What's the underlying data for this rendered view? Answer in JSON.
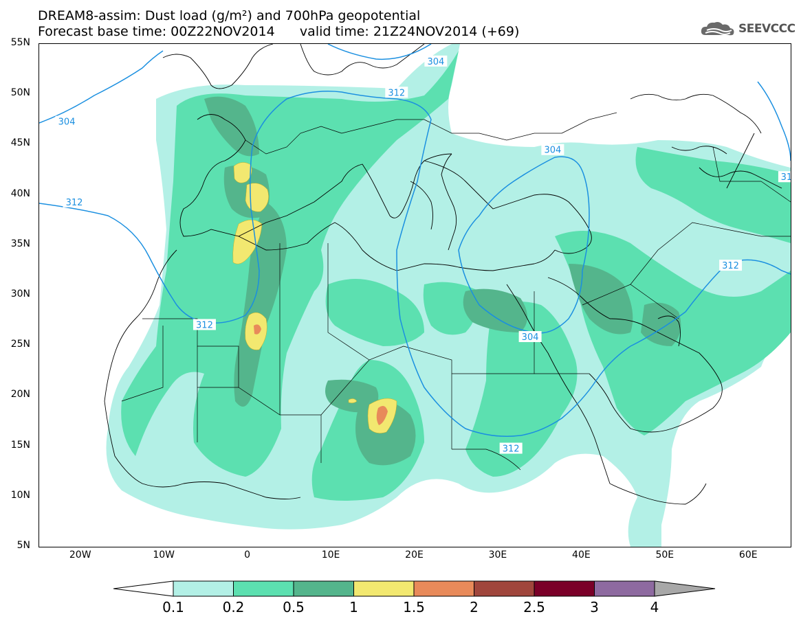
{
  "header": {
    "title_line1": "DREAM8-assim: Dust load (g/m²) and 700hPa geopotential",
    "title_line2": "Forecast base time: 00Z22NOV2014      valid time: 21Z24NOV2014 (+69)"
  },
  "logo": {
    "text": "SEEVCCC",
    "icon": "cloud-icon"
  },
  "map": {
    "lon_range": [
      -25,
      65
    ],
    "lat_range": [
      5,
      55
    ],
    "lat_ticks": [
      {
        "value": 55,
        "label": "55N"
      },
      {
        "value": 50,
        "label": "50N"
      },
      {
        "value": 45,
        "label": "45N"
      },
      {
        "value": 40,
        "label": "40N"
      },
      {
        "value": 35,
        "label": "35N"
      },
      {
        "value": 30,
        "label": "30N"
      },
      {
        "value": 25,
        "label": "25N"
      },
      {
        "value": 20,
        "label": "20N"
      },
      {
        "value": 15,
        "label": "15N"
      },
      {
        "value": 10,
        "label": "10N"
      },
      {
        "value": 5,
        "label": "5N"
      }
    ],
    "lon_ticks": [
      {
        "value": -20,
        "label": "20W"
      },
      {
        "value": -10,
        "label": "10W"
      },
      {
        "value": 0,
        "label": "0"
      },
      {
        "value": 10,
        "label": "10E"
      },
      {
        "value": 20,
        "label": "20E"
      },
      {
        "value": 30,
        "label": "30E"
      },
      {
        "value": 40,
        "label": "40E"
      },
      {
        "value": 50,
        "label": "50E"
      },
      {
        "value": 60,
        "label": "60E"
      }
    ],
    "contour_labels": [
      {
        "text": "304",
        "lon": -21.7,
        "lat": 47.3
      },
      {
        "text": "304",
        "lon": 22.5,
        "lat": 53.3
      },
      {
        "text": "312",
        "lon": -20.8,
        "lat": 39.3
      },
      {
        "text": "312",
        "lon": 17.8,
        "lat": 50.2
      },
      {
        "text": "312",
        "lon": -5.2,
        "lat": 27.1
      },
      {
        "text": "304",
        "lon": 36.5,
        "lat": 44.5
      },
      {
        "text": "304",
        "lon": 33.8,
        "lat": 25.9
      },
      {
        "text": "312",
        "lon": 57.8,
        "lat": 33.0
      },
      {
        "text": "312",
        "lon": 31.5,
        "lat": 14.8
      },
      {
        "text": "31",
        "lon": 64.5,
        "lat": 41.8
      }
    ]
  },
  "colorbar": {
    "colors": [
      "#b3f0e6",
      "#5ce0b0",
      "#54b58c",
      "#f2e870",
      "#e88a5a",
      "#a0463c",
      "#7a0028",
      "#8e6aa0",
      "#a8a8a8"
    ],
    "labels": [
      "0.1",
      "0.2",
      "0.5",
      "1",
      "1.5",
      "2",
      "2.5",
      "3",
      "4"
    ]
  }
}
